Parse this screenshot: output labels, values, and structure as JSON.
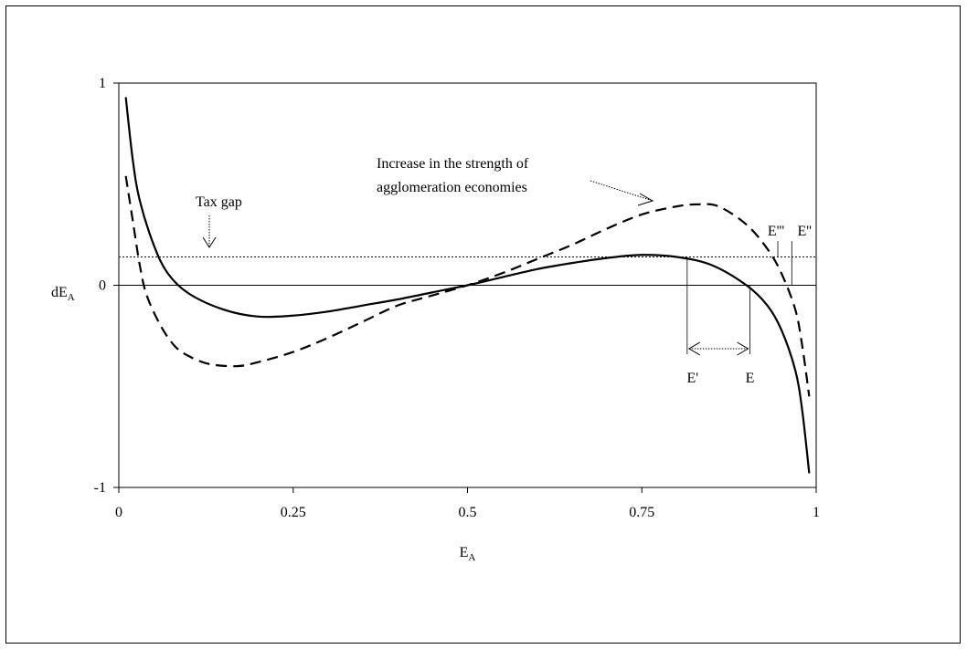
{
  "chart_data": {
    "type": "line",
    "xlabel": "E",
    "xlabel_sub": "A",
    "ylabel": "dE",
    "ylabel_sub": "A",
    "xlim": [
      0,
      1
    ],
    "ylim": [
      -1,
      1
    ],
    "x_ticks": [
      "0",
      "0.25",
      "0.5",
      "0.75",
      "1"
    ],
    "x_tick_values": [
      0,
      0.25,
      0.5,
      0.75,
      1
    ],
    "y_ticks": [
      "-1",
      "0",
      "1"
    ],
    "y_tick_values": [
      -1,
      0,
      1
    ],
    "grid": false,
    "series": [
      {
        "style": "solid",
        "x": [
          0.01,
          0.02,
          0.03,
          0.05,
          0.07,
          0.1,
          0.15,
          0.2,
          0.25,
          0.3,
          0.35,
          0.4,
          0.45,
          0.5,
          0.55,
          0.6,
          0.65,
          0.7,
          0.75,
          0.8,
          0.85,
          0.9,
          0.93,
          0.95,
          0.97,
          0.98,
          0.99
        ],
        "y": [
          0.93,
          0.62,
          0.42,
          0.2,
          0.06,
          -0.04,
          -0.12,
          -0.155,
          -0.15,
          -0.13,
          -0.1,
          -0.07,
          -0.035,
          0.0,
          0.04,
          0.08,
          0.11,
          0.135,
          0.15,
          0.14,
          0.1,
          0.0,
          -0.1,
          -0.22,
          -0.42,
          -0.62,
          -0.93
        ]
      },
      {
        "style": "dashed",
        "x": [
          0.01,
          0.02,
          0.03,
          0.04,
          0.06,
          0.08,
          0.1,
          0.13,
          0.17,
          0.2,
          0.25,
          0.3,
          0.35,
          0.4,
          0.45,
          0.5,
          0.55,
          0.6,
          0.65,
          0.7,
          0.75,
          0.8,
          0.83,
          0.86,
          0.9,
          0.93,
          0.95,
          0.97,
          0.98,
          0.99
        ],
        "y": [
          0.54,
          0.32,
          0.1,
          -0.05,
          -0.2,
          -0.3,
          -0.35,
          -0.39,
          -0.4,
          -0.38,
          -0.33,
          -0.26,
          -0.18,
          -0.1,
          -0.05,
          0.0,
          0.06,
          0.13,
          0.2,
          0.28,
          0.35,
          0.39,
          0.4,
          0.39,
          0.3,
          0.18,
          0.06,
          -0.12,
          -0.3,
          -0.55
        ]
      }
    ],
    "tax_gap_y": 0.14,
    "annotations": {
      "tax_gap": "Tax gap",
      "increase_line1": "Increase in the strength of",
      "increase_line2": "agglomeration economies",
      "e_prime": "E'",
      "e": "E",
      "e_triple": "E'''",
      "e_double": "E''"
    },
    "marker_x": {
      "e_prime": 0.815,
      "e": 0.905,
      "e_triple": 0.945,
      "e_double": 0.965
    }
  }
}
